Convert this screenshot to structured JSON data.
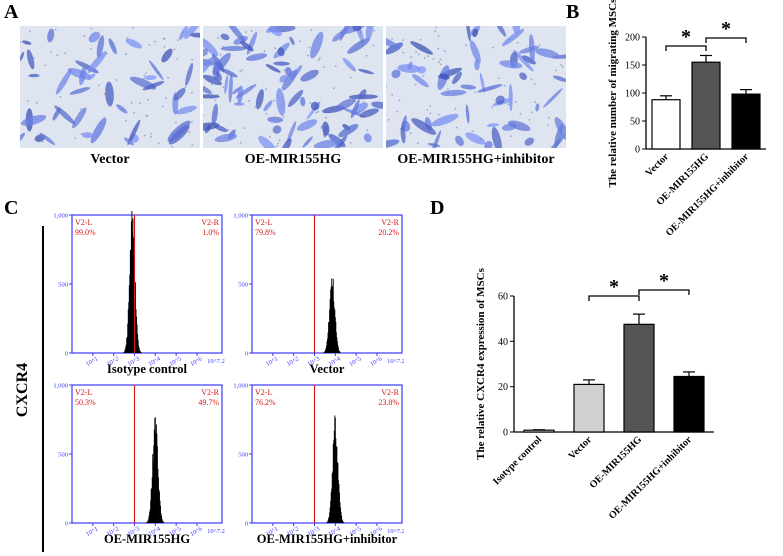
{
  "panels": {
    "a": "A",
    "b": "B",
    "c": "C",
    "d": "D"
  },
  "panel_a": {
    "labels": [
      "Vector",
      "OE-MIR155HG",
      "OE-MIR155HG+inhibitor"
    ]
  },
  "panel_c": {
    "ylabel": "CXCR4",
    "y_ticks": [
      "1,000",
      "1,000",
      "500",
      "500",
      "0"
    ],
    "y_top_tick": "1,000",
    "x_ticks": [
      "10^1",
      "10^2",
      "10^3",
      "10^4",
      "10^5",
      "10^6",
      "10^7.2"
    ],
    "histograms": [
      {
        "name": "Isotype control",
        "left_gate": "V2-L",
        "right_gate": "V2-R",
        "left_pct": "99.0%",
        "right_pct": "1.0%",
        "peak_log": 2.9,
        "peak_height": 1000
      },
      {
        "name": "Vector",
        "left_gate": "V2-L",
        "right_gate": "V2-R",
        "left_pct": "79.8%",
        "right_pct": "20.2%",
        "peak_log": 3.85,
        "peak_height": 560
      },
      {
        "name": "OE-MIR155HG",
        "left_gate": "V2-L",
        "right_gate": "V2-R",
        "left_pct": "50.3%",
        "right_pct": "49.7%",
        "peak_log": 4.0,
        "peak_height": 780
      },
      {
        "name": "OE-MIR155HG+inhibitor",
        "left_gate": "V2-L",
        "right_gate": "V2-R",
        "left_pct": "76.2%",
        "right_pct": "23.8%",
        "peak_log": 4.0,
        "peak_height": 780
      }
    ]
  },
  "chart_data": [
    {
      "type": "bar",
      "title": "",
      "ylabel": "The relative number of migrating MSCs",
      "categories": [
        "Vector",
        "OE-MIR155HG",
        "OE-MIR155HG+inhibitor"
      ],
      "values": [
        88,
        155,
        98
      ],
      "errors": [
        7,
        12,
        8
      ],
      "ylim": [
        0,
        200
      ],
      "yticks": [
        0,
        50,
        100,
        150,
        200
      ],
      "colors": [
        "#ffffff",
        "#555555",
        "#000000"
      ],
      "significance": [
        "*",
        "*"
      ]
    },
    {
      "type": "bar",
      "title": "",
      "ylabel": "The relative CXCR4 expression of MSCs",
      "categories": [
        "Isotype control",
        "Vector",
        "OE-MIR155HG",
        "OE-MIR155HG+inhibitor"
      ],
      "values": [
        0.8,
        21,
        47.5,
        24.5
      ],
      "errors": [
        0.2,
        2,
        4.5,
        2
      ],
      "ylim": [
        0,
        60
      ],
      "yticks": [
        0,
        20,
        40,
        60
      ],
      "colors": [
        "#ffffff",
        "#d0d0d0",
        "#555555",
        "#000000"
      ],
      "significance": [
        "*",
        "*"
      ]
    }
  ]
}
